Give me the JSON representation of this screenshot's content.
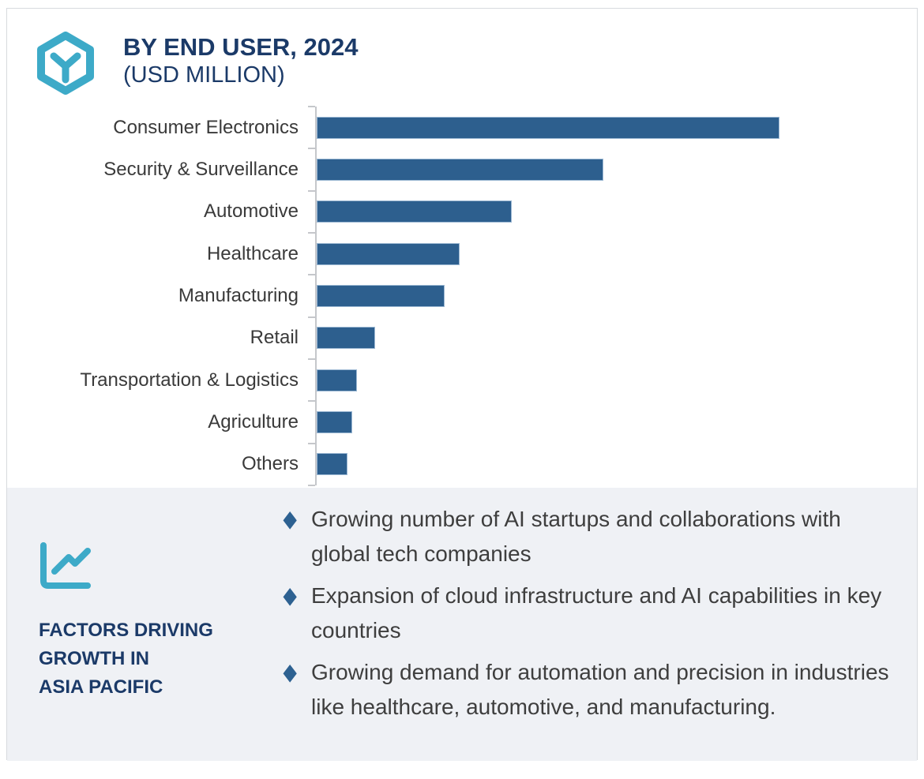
{
  "header": {
    "title": "BY END USER, 2024",
    "subtitle": "(USD MILLION)",
    "icon": "hexagon-box-icon"
  },
  "chart_data": {
    "type": "bar",
    "orientation": "horizontal",
    "title": "BY END USER, 2024 (USD MILLION)",
    "unit": "USD MILLION",
    "categories": [
      "Consumer Electronics",
      "Security & Surveillance",
      "Automotive",
      "Healthcare",
      "Manufacturing",
      "Retail",
      "Transportation & Logistics",
      "Agriculture",
      "Others"
    ],
    "values_relative_pct": [
      100,
      62,
      42.2,
      30.9,
      27.6,
      12.6,
      8.7,
      7.7,
      6.7
    ],
    "value_axis_labeled": false,
    "grid": false,
    "legend": false,
    "bar_color": "#2d5f8e"
  },
  "factors": {
    "icon": "line-chart-icon",
    "heading": "FACTORS DRIVING\nGROWTH IN\nASIA PACIFIC",
    "bullet_marker": "diamond",
    "bullets": [
      "Growing number of AI startups and collaborations with global tech companies",
      "Expansion of cloud infrastructure and AI capabilities in key countries",
      "Growing demand for automation and precision in industries like healthcare, automotive, and manufacturing."
    ]
  },
  "colors": {
    "navy": "#1b3a68",
    "teal": "#3daac8",
    "bar_blue": "#2d5f8e",
    "bullet_blue": "#2d6191",
    "body_text": "#3e3e3e",
    "panel_bg": "#eff1f5",
    "axis_gray": "#c5c7cb",
    "card_border": "#d7dade"
  }
}
